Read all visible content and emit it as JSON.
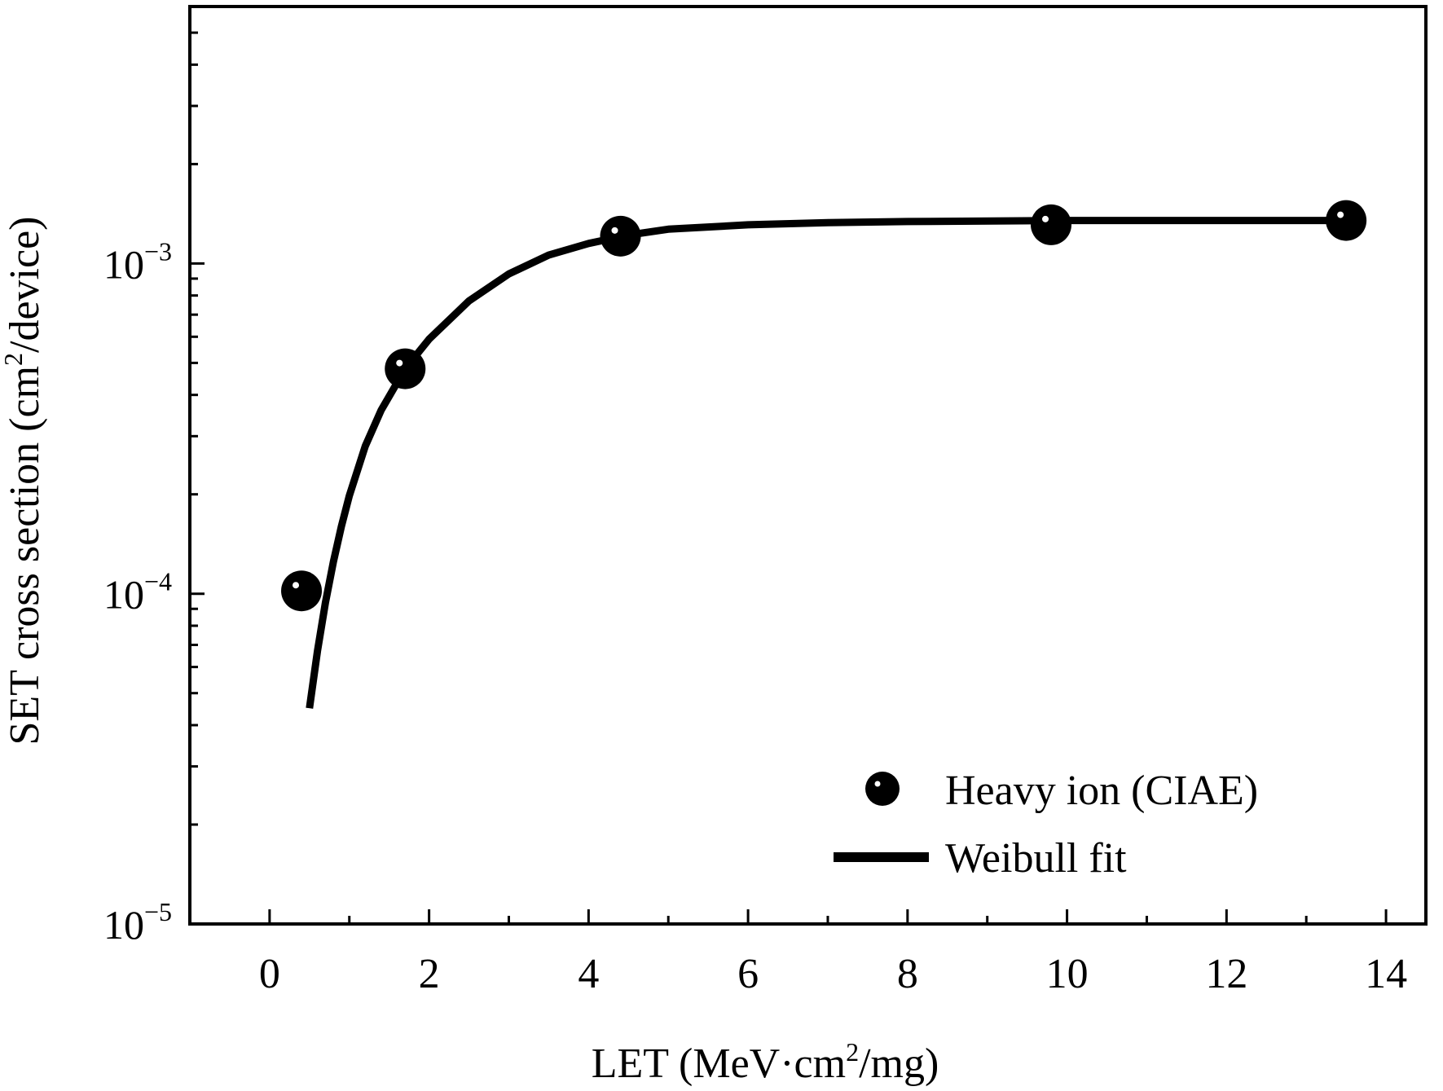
{
  "chart_data": {
    "type": "scatter",
    "xlabel_parts": [
      "LET (MeV·cm",
      "2",
      "/mg)"
    ],
    "ylabel_parts": [
      "SET cross section (cm",
      "2",
      "/device)"
    ],
    "xlim": [
      -1,
      14.5
    ],
    "ylim": [
      1e-05,
      0.006
    ],
    "yscale": "log",
    "x_ticks": [
      0,
      2,
      4,
      6,
      8,
      10,
      12,
      14
    ],
    "x_tick_labels": [
      "0",
      "2",
      "4",
      "6",
      "8",
      "10",
      "12",
      "14"
    ],
    "y_major_ticks": [
      {
        "value": 0.001,
        "base": "10",
        "exp": "−3"
      },
      {
        "value": 0.0001,
        "base": "10",
        "exp": "−4"
      },
      {
        "value": 1e-05,
        "base": "10",
        "exp": "−5"
      }
    ],
    "series": [
      {
        "name": "Heavy ion (CIAE)",
        "kind": "scatter",
        "x": [
          0.4,
          1.7,
          4.4,
          9.8,
          13.5
        ],
        "y": [
          0.000102,
          0.00048,
          0.00121,
          0.00131,
          0.00135
        ]
      },
      {
        "name": "Weibull fit",
        "kind": "line",
        "x": [
          0.5,
          0.6,
          0.7,
          0.8,
          0.9,
          1.0,
          1.2,
          1.4,
          1.7,
          2.0,
          2.5,
          3.0,
          3.5,
          4.0,
          4.5,
          5.0,
          6.0,
          7.0,
          8.0,
          10.0,
          12.0,
          13.5
        ],
        "y": [
          4.5e-05,
          6.7e-05,
          9.4e-05,
          0.000125,
          0.00016,
          0.000198,
          0.00028,
          0.00036,
          0.00048,
          0.00059,
          0.00077,
          0.00093,
          0.00106,
          0.00115,
          0.00122,
          0.00127,
          0.00131,
          0.00133,
          0.00134,
          0.00135,
          0.00135,
          0.00135
        ]
      }
    ],
    "legend": {
      "position": "bottom-right",
      "items": [
        "Heavy ion (CIAE)",
        "Weibull fit"
      ]
    },
    "grid": false
  }
}
